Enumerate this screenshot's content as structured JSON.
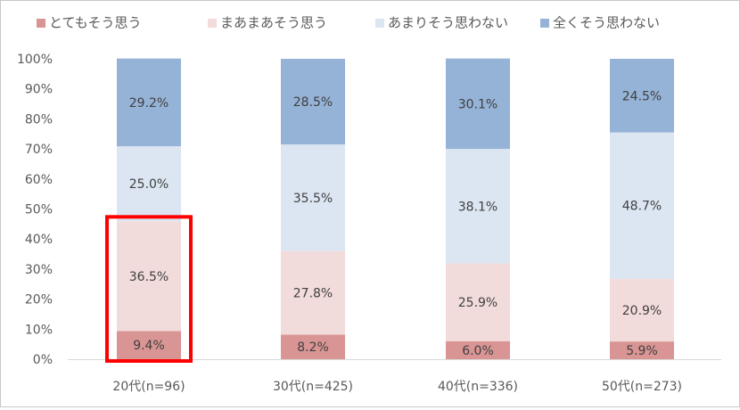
{
  "chart_data": {
    "type": "bar",
    "stacked": true,
    "percent": true,
    "categories": [
      "20代(n=96)",
      "30代(n=425)",
      "40代(n=336)",
      "50代(n=273)"
    ],
    "series": [
      {
        "name": "とてもそう思う",
        "color": "#d99594",
        "values": [
          9.4,
          8.2,
          6.0,
          5.9
        ],
        "labels": [
          "9.4%",
          "8.2%",
          "6.0%",
          "5.9%"
        ]
      },
      {
        "name": "まあまあそう思う",
        "color": "#f2dcdb",
        "values": [
          36.5,
          27.8,
          25.9,
          20.9
        ],
        "labels": [
          "36.5%",
          "27.8%",
          "25.9%",
          "20.9%"
        ]
      },
      {
        "name": "あまりそう思わない",
        "color": "#dce6f2",
        "values": [
          25.0,
          35.5,
          38.1,
          48.7
        ],
        "labels": [
          "25.0%",
          "35.5%",
          "38.1%",
          "48.7%"
        ]
      },
      {
        "name": "全くそう思わない",
        "color": "#95b3d7",
        "values": [
          29.2,
          28.5,
          30.1,
          24.5
        ],
        "labels": [
          "29.2%",
          "28.5%",
          "30.1%",
          "24.5%"
        ]
      }
    ],
    "y_ticks": [
      "0%",
      "10%",
      "20%",
      "30%",
      "40%",
      "50%",
      "60%",
      "70%",
      "80%",
      "90%",
      "100%"
    ],
    "ylim": [
      0,
      100
    ],
    "grid": false,
    "legend_position": "top",
    "highlight": {
      "category_index": 0,
      "series_indices": [
        0,
        1
      ],
      "color": "#ff0000"
    }
  }
}
